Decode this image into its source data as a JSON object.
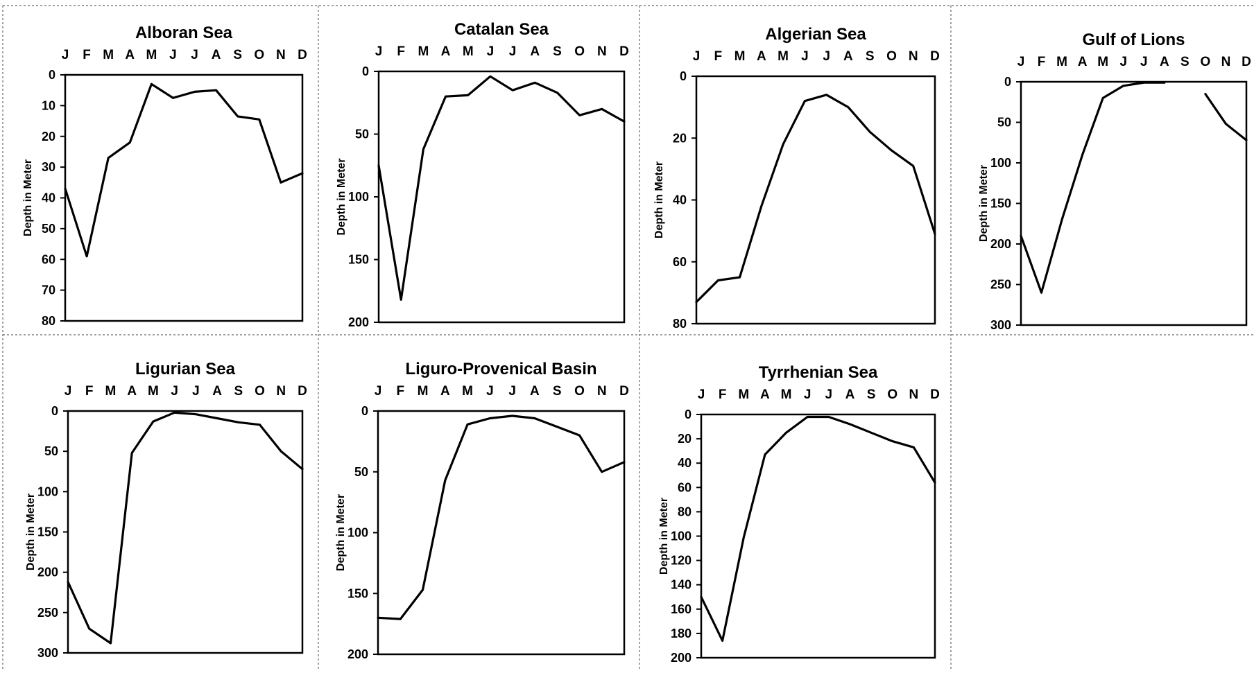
{
  "chart_data": [
    {
      "type": "line",
      "title": "Alboran Sea",
      "ylabel": "Depth in Meter",
      "x": [
        "J",
        "F",
        "M",
        "A",
        "M",
        "J",
        "J",
        "A",
        "S",
        "O",
        "N",
        "D"
      ],
      "y_ticks": [
        0,
        10,
        20,
        30,
        40,
        50,
        60,
        70,
        80
      ],
      "ylim": [
        0,
        80
      ],
      "y_inverted": true,
      "series": [
        {
          "values": [
            37,
            59,
            27,
            22,
            3,
            7.5,
            5.5,
            5,
            13.5,
            14.5,
            35,
            32
          ]
        }
      ]
    },
    {
      "type": "line",
      "title": "Catalan Sea",
      "ylabel": "Depth in Meter",
      "x": [
        "J",
        "F",
        "M",
        "A",
        "M",
        "J",
        "J",
        "A",
        "S",
        "O",
        "N",
        "D"
      ],
      "y_ticks": [
        0,
        50,
        100,
        150,
        200
      ],
      "ylim": [
        0,
        200
      ],
      "y_inverted": true,
      "series": [
        {
          "values": [
            75,
            182,
            62,
            20,
            19,
            4,
            15,
            9,
            17,
            35,
            30,
            40
          ]
        }
      ]
    },
    {
      "type": "line",
      "title": "Algerian Sea",
      "ylabel": "Depth in Meter",
      "x": [
        "J",
        "F",
        "M",
        "A",
        "M",
        "J",
        "J",
        "A",
        "S",
        "O",
        "N",
        "D"
      ],
      "y_ticks": [
        0,
        20,
        40,
        60,
        80
      ],
      "ylim": [
        0,
        80
      ],
      "y_inverted": true,
      "series": [
        {
          "values": [
            73,
            66,
            65,
            42,
            22,
            8,
            6,
            10,
            18,
            24,
            29,
            51
          ]
        }
      ]
    },
    {
      "type": "line",
      "title": "Gulf of Lions",
      "ylabel": "Depth in Meter",
      "x": [
        "J",
        "F",
        "M",
        "A",
        "M",
        "J",
        "J",
        "A",
        "S",
        "O",
        "N",
        "D"
      ],
      "y_ticks": [
        0,
        50,
        100,
        150,
        200,
        250,
        300
      ],
      "ylim": [
        0,
        300
      ],
      "y_inverted": true,
      "series": [
        {
          "values": [
            190,
            260,
            170,
            90,
            20,
            5,
            1,
            1,
            null,
            15,
            52,
            72
          ],
          "segments": [
            [
              0,
              7
            ],
            [
              8,
              11
            ]
          ]
        }
      ]
    },
    {
      "type": "line",
      "title": "Ligurian Sea",
      "ylabel": "Depth in Meter",
      "x": [
        "J",
        "F",
        "M",
        "A",
        "M",
        "J",
        "J",
        "A",
        "S",
        "O",
        "N",
        "D"
      ],
      "y_ticks": [
        0,
        50,
        100,
        150,
        200,
        250,
        300
      ],
      "ylim": [
        0,
        300
      ],
      "y_inverted": true,
      "series": [
        {
          "values": [
            212,
            270,
            288,
            52,
            13,
            2,
            4,
            9,
            14,
            17,
            50,
            72
          ]
        }
      ]
    },
    {
      "type": "line",
      "title": "Liguro-Provenical Basin",
      "ylabel": "Depth in Meter",
      "x": [
        "J",
        "F",
        "M",
        "A",
        "M",
        "J",
        "J",
        "A",
        "S",
        "O",
        "N",
        "D"
      ],
      "y_ticks": [
        0,
        50,
        100,
        150,
        200
      ],
      "ylim": [
        0,
        200
      ],
      "y_inverted": true,
      "series": [
        {
          "values": [
            170,
            171,
            147,
            57,
            11,
            6,
            4,
            6,
            13,
            20,
            50,
            42
          ]
        }
      ]
    },
    {
      "type": "line",
      "title": "Tyrrhenian Sea",
      "ylabel": "Depth in Meter",
      "x": [
        "J",
        "F",
        "M",
        "A",
        "M",
        "J",
        "J",
        "A",
        "S",
        "O",
        "N",
        "D"
      ],
      "y_ticks": [
        0,
        20,
        40,
        60,
        80,
        100,
        120,
        140,
        160,
        180,
        200
      ],
      "ylim": [
        0,
        200
      ],
      "y_inverted": true,
      "series": [
        {
          "values": [
            150,
            186,
            101,
            33,
            15,
            2,
            2,
            8,
            15,
            22,
            27,
            56
          ]
        }
      ]
    }
  ]
}
